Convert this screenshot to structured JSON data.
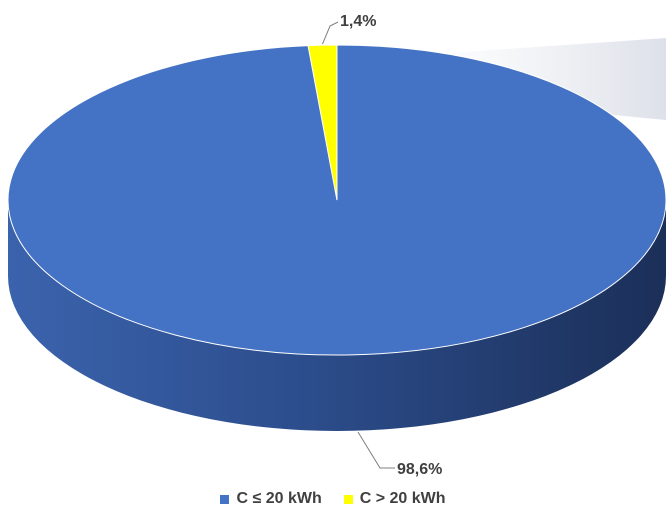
{
  "chart_data": {
    "type": "pie",
    "style": "3d",
    "title": "",
    "categories": [
      "C ≤ 20 kWh",
      "C > 20 kWh"
    ],
    "values": [
      98.6,
      1.4
    ],
    "labels": [
      "98,6%",
      "1,4%"
    ],
    "colors": [
      "#4472C4",
      "#FFFF00"
    ],
    "legend_position": "bottom"
  },
  "legend": {
    "items": [
      {
        "label": "C ≤ 20 kWh",
        "color": "#4472C4"
      },
      {
        "label": "C > 20 kWh",
        "color": "#FFFF00"
      }
    ]
  }
}
